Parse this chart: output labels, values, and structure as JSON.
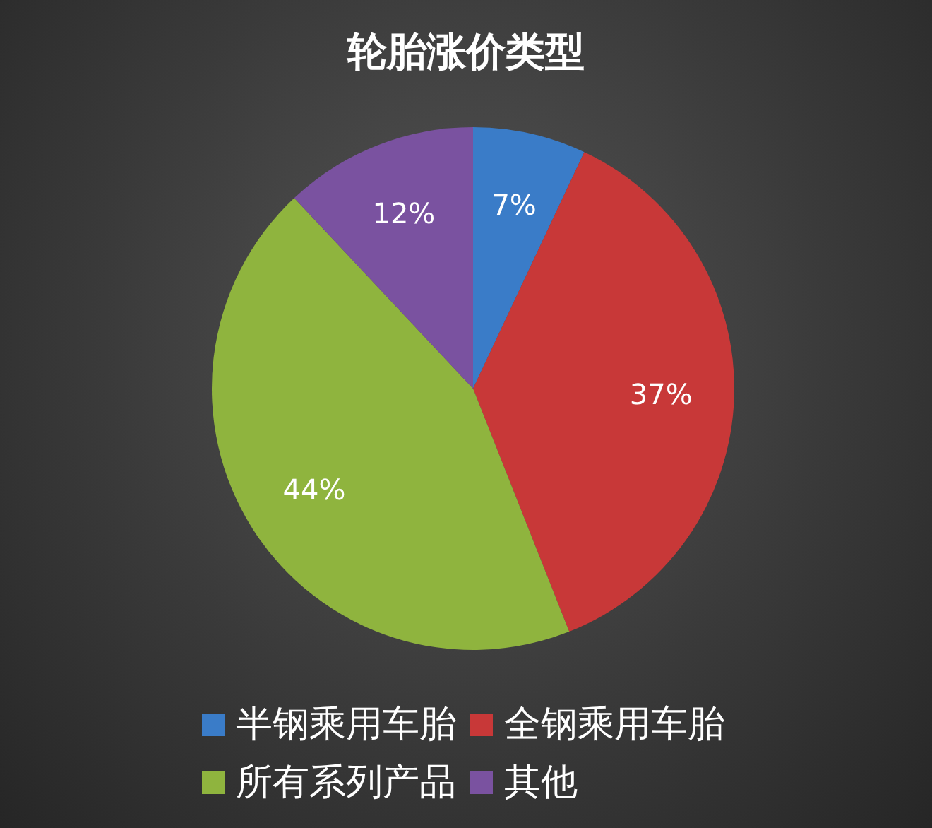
{
  "chart_data": {
    "type": "pie",
    "title": "轮胎涨价类型",
    "categories": [
      "半钢乘用车胎",
      "全钢乘用车胎",
      "所有系列产品",
      "其他"
    ],
    "values": [
      7,
      37,
      44,
      12
    ],
    "colors": [
      "#3a7cc8",
      "#c83838",
      "#8fb43e",
      "#7a52a0"
    ],
    "value_labels": [
      "7%",
      "37%",
      "44%",
      "12%"
    ],
    "legend": "bottom"
  }
}
